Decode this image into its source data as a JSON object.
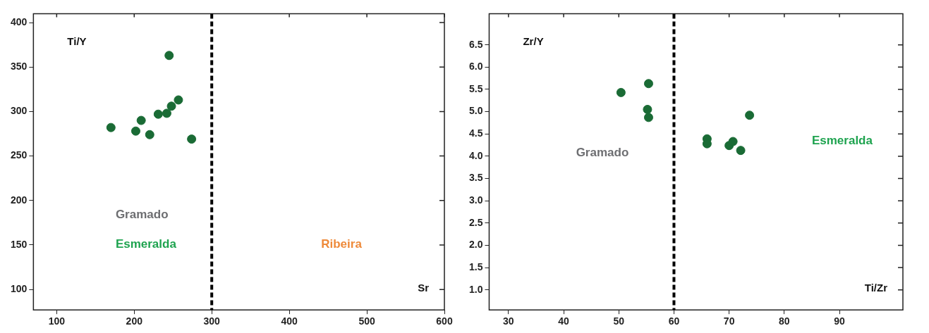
{
  "chart_data": [
    {
      "type": "scatter",
      "xlabel": "Sr",
      "ylabel": "Ti/Y",
      "marker": "circle",
      "grid": false,
      "legend": false,
      "x": [
        170,
        202,
        209,
        220,
        231,
        242,
        248,
        257,
        245,
        274
      ],
      "series": [
        {
          "color": "#1a6b35",
          "values": [
            282,
            278,
            290,
            274,
            297,
            298,
            306,
            313,
            363,
            269
          ]
        }
      ],
      "xlim": [
        70,
        600
      ],
      "xticks": [
        100,
        200,
        300,
        400,
        500,
        600
      ],
      "ylim": [
        77,
        410
      ],
      "yticks": [
        100,
        150,
        200,
        250,
        300,
        350,
        400
      ],
      "ref_lines": [
        {
          "axis": "x",
          "value": 300,
          "color": "#000000",
          "line_style": "dashed"
        }
      ],
      "annotations": [
        "Gramado",
        "Esmeralda",
        "Ribeira"
      ]
    },
    {
      "type": "scatter",
      "xlabel": "Ti/Zr",
      "ylabel": "Zr/Y",
      "marker": "circle",
      "grid": false,
      "legend": false,
      "x": [
        50.4,
        55.4,
        55.2,
        55.4,
        66.0,
        66.0,
        70.0,
        70.7,
        72.1,
        73.7
      ],
      "series": [
        {
          "color": "#1a6b35",
          "values": [
            5.43,
            5.63,
            5.05,
            4.87,
            4.39,
            4.28,
            4.24,
            4.33,
            4.13,
            4.92
          ]
        }
      ],
      "xlim": [
        26.5,
        101.5
      ],
      "xticks": [
        30,
        40,
        50,
        60,
        70,
        80,
        90
      ],
      "ylim": [
        0.55,
        7.2
      ],
      "yticks": [
        {
          "value": 1,
          "label": "1.0"
        },
        1.5,
        {
          "value": 2,
          "label": "2.0"
        },
        2.5,
        {
          "value": 3,
          "label": "3.0"
        },
        3.5,
        {
          "value": 4,
          "label": "4.0"
        },
        4.5,
        {
          "value": 5,
          "label": "5.0"
        },
        5.5,
        {
          "value": 6,
          "label": "6.0"
        },
        6.5
      ],
      "ref_lines": [
        {
          "axis": "x",
          "value": 60,
          "color": "#000000",
          "line_style": "dashed"
        }
      ],
      "annotations": [
        "Gramado",
        "Esmeralda"
      ]
    }
  ]
}
